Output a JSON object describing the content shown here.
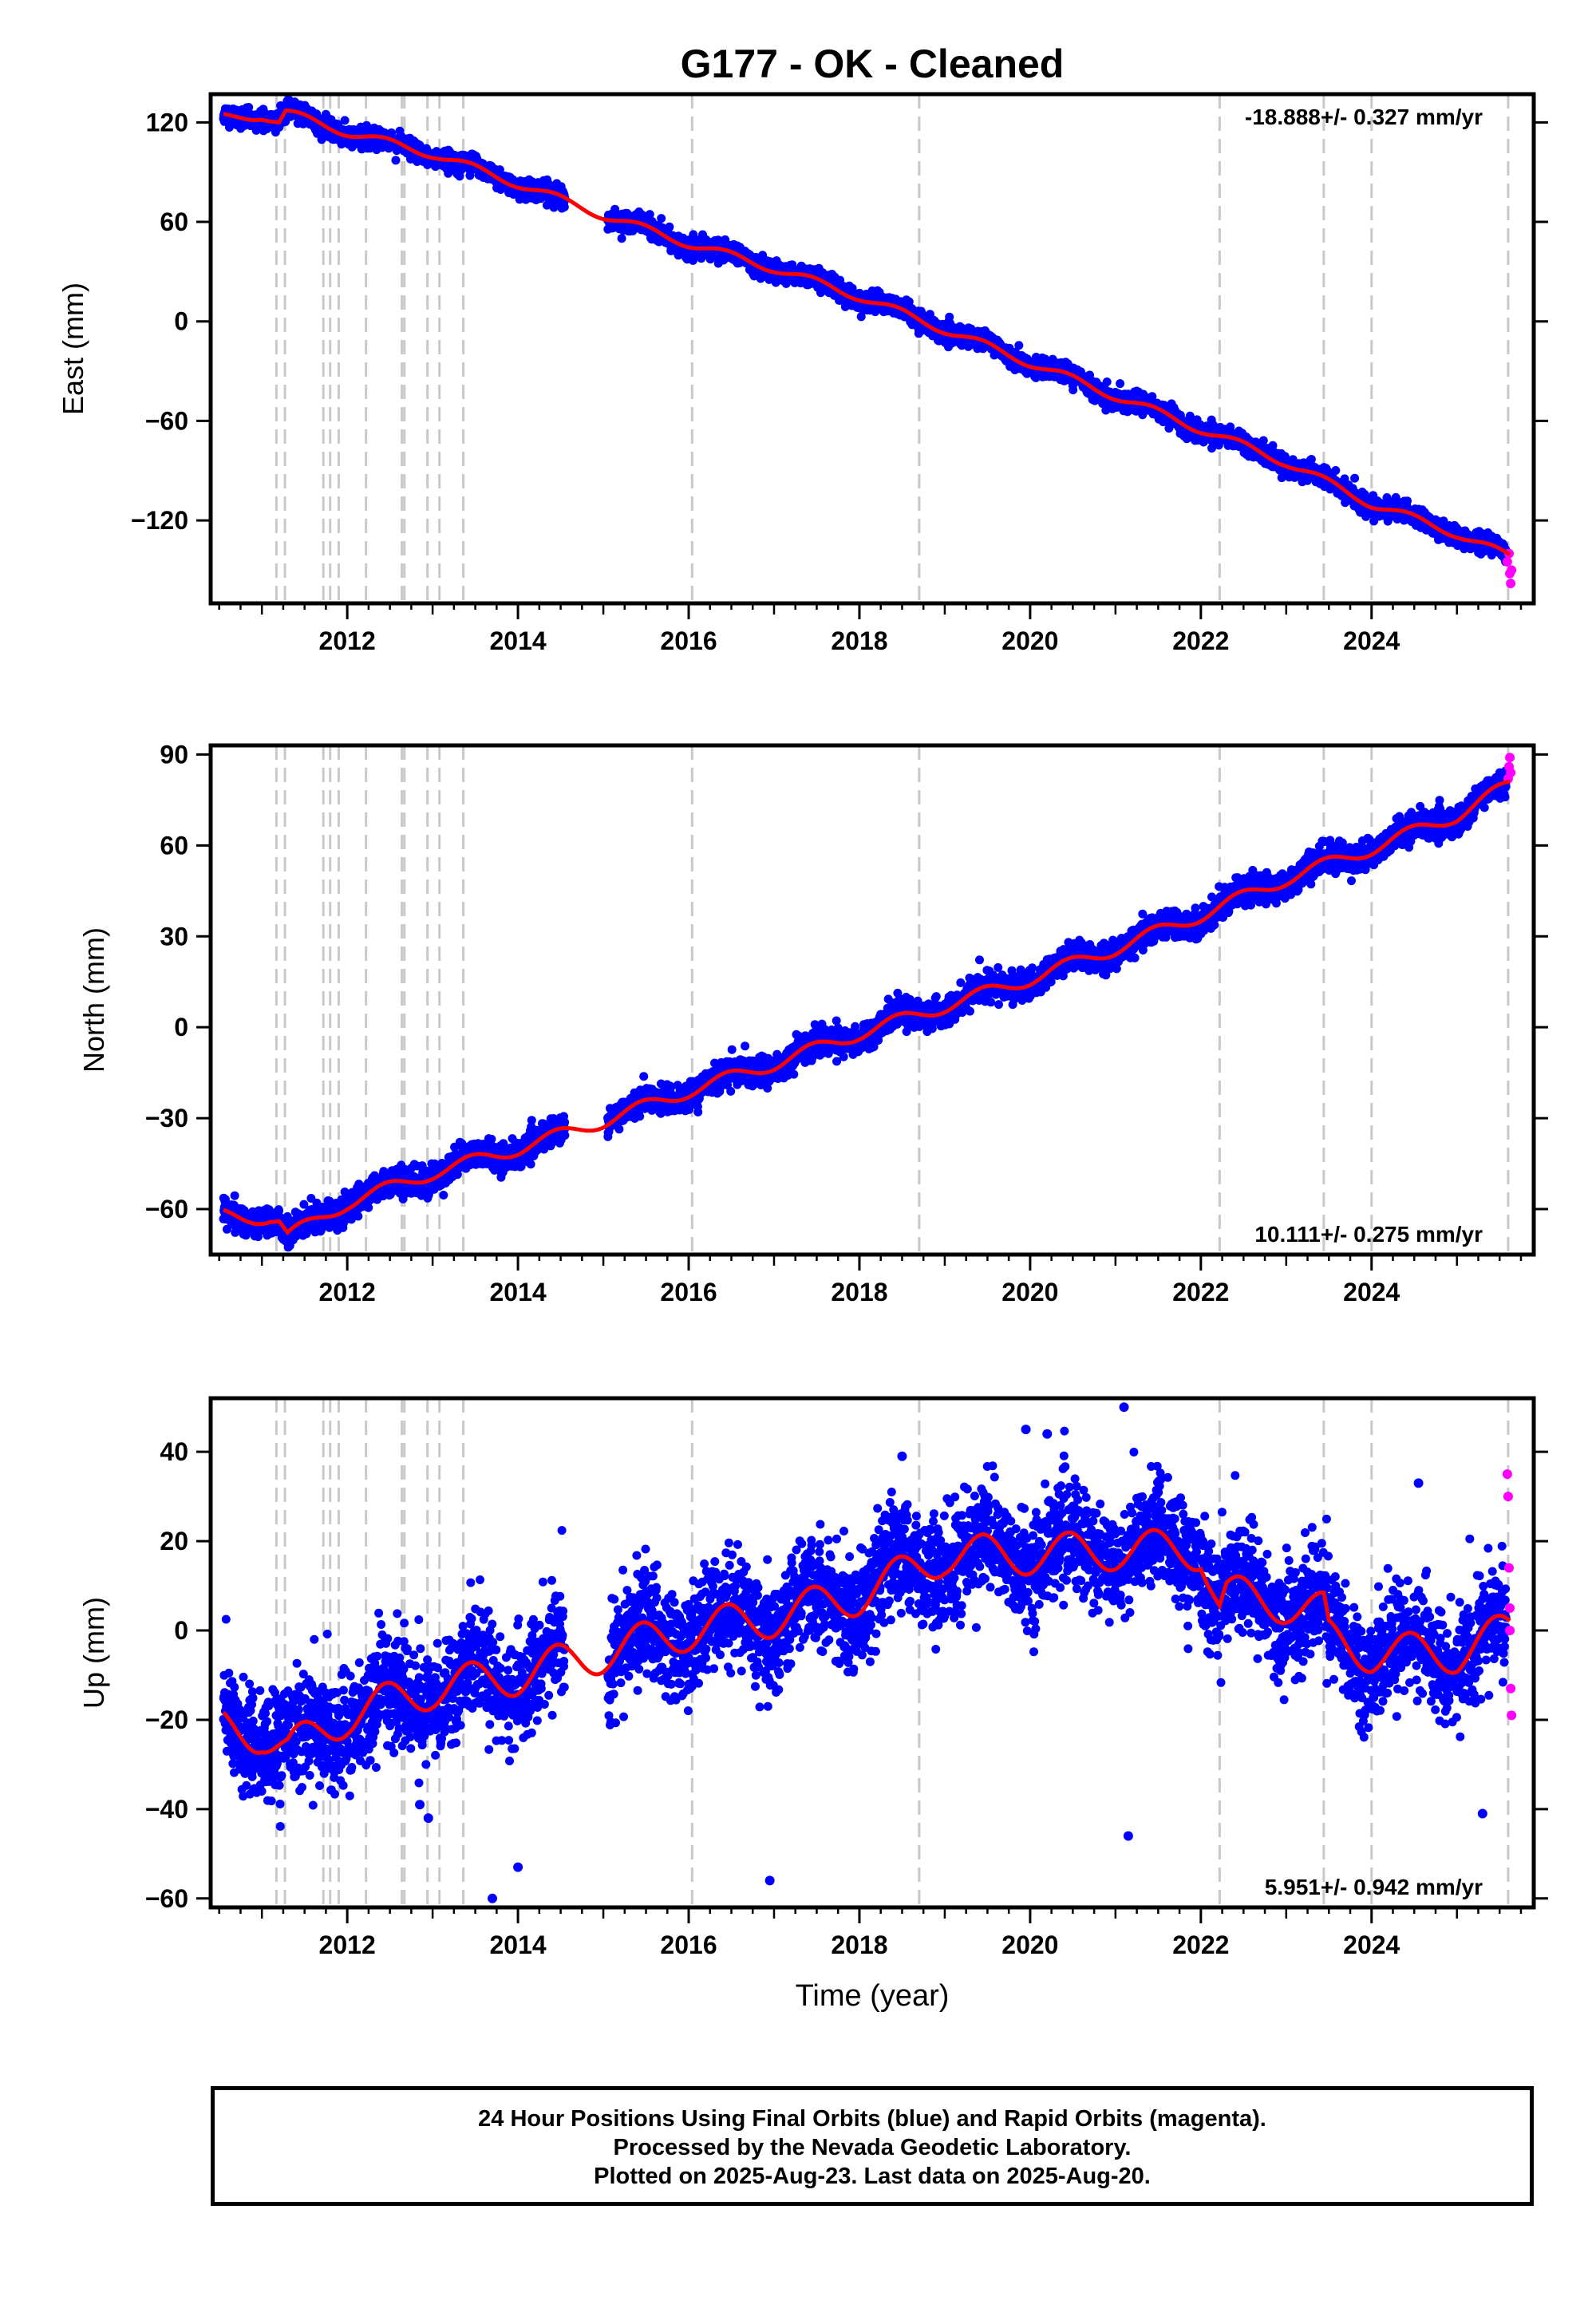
{
  "title": "G177  - OK - Cleaned",
  "colors": {
    "final": "#0000ff",
    "rapid": "#ff00ff",
    "model": "#ff0000",
    "event": "#c8c8c8"
  },
  "xaxis": {
    "label": "Time (year)",
    "range": [
      2010.4,
      2025.9
    ],
    "ticks": [
      2012,
      2014,
      2016,
      2018,
      2020,
      2022,
      2024
    ]
  },
  "events": [
    2011.17,
    2011.27,
    2011.72,
    2011.8,
    2011.9,
    2012.22,
    2012.64,
    2012.67,
    2012.94,
    2013.08,
    2013.36,
    2016.04,
    2018.7,
    2022.22,
    2023.44,
    2024.0,
    2025.6
  ],
  "chart_data": [
    {
      "type": "scatter",
      "component": "east",
      "ylabel": "East (mm)",
      "ylim": [
        -170,
        137
      ],
      "yticks": [
        120,
        60,
        0,
        -60,
        -120
      ],
      "rate": "-18.888+/- 0.327 mm/yr",
      "rate_pos": "top-right",
      "model": {
        "x": [
          2010.55,
          2011.0,
          2011.2,
          2011.28,
          2012.0,
          2013.0,
          2014.0,
          2015.0,
          2016.0,
          2017.0,
          2018.0,
          2019.0,
          2020.0,
          2021.0,
          2022.0,
          2023.0,
          2024.0,
          2025.0,
          2025.62
        ],
        "y": [
          123,
          124,
          120,
          126,
          114,
          101,
          83,
          64,
          47,
          32,
          15,
          -5,
          -25,
          -45,
          -65,
          -85,
          -110,
          -128,
          -142
        ]
      },
      "noise": 2.8,
      "seasonal": 2.5,
      "gaps": [
        [
          2014.55,
          2015.05
        ]
      ],
      "rapid": {
        "x": [
          2025.59,
          2025.61,
          2025.62,
          2025.63,
          2025.64
        ],
        "y": [
          -145,
          -140,
          -152,
          -158,
          -150
        ]
      }
    },
    {
      "type": "scatter",
      "component": "north",
      "ylabel": "North (mm)",
      "ylim": [
        -75,
        93
      ],
      "yticks": [
        90,
        60,
        30,
        0,
        -30,
        -60
      ],
      "rate": "10.111+/- 0.275 mm/yr",
      "rate_pos": "bottom-right",
      "model": {
        "x": [
          2010.55,
          2011.1,
          2011.2,
          2011.3,
          2012.0,
          2013.0,
          2014.0,
          2015.0,
          2016.0,
          2017.0,
          2018.0,
          2019.0,
          2020.0,
          2021.0,
          2022.0,
          2023.0,
          2024.0,
          2025.0,
          2025.62
        ],
        "y": [
          -62,
          -63,
          -64,
          -69,
          -58,
          -48,
          -40,
          -31,
          -21,
          -12,
          -2,
          7,
          16,
          26,
          37,
          49,
          59,
          70,
          80
        ]
      },
      "noise": 2.2,
      "seasonal": 2.2,
      "gaps": [
        [
          2014.55,
          2015.05
        ]
      ],
      "rapid": {
        "x": [
          2025.6,
          2025.61,
          2025.62,
          2025.63
        ],
        "y": [
          82,
          86,
          89,
          84
        ]
      }
    },
    {
      "type": "scatter",
      "component": "up",
      "ylabel": "Up (mm)",
      "ylim": [
        -62,
        52
      ],
      "yticks": [
        40,
        20,
        0,
        -20,
        -40,
        -60
      ],
      "rate": "5.951+/- 0.942 mm/yr",
      "rate_pos": "bottom-right",
      "model": {
        "x": [
          2010.55,
          2011.0,
          2011.3,
          2012.0,
          2013.0,
          2014.0,
          2015.0,
          2016.0,
          2017.0,
          2018.0,
          2018.7,
          2019.0,
          2020.0,
          2021.0,
          2022.0,
          2022.22,
          2022.3,
          2023.0,
          2023.44,
          2023.5,
          2024.0,
          2025.0,
          2025.62
        ],
        "y": [
          -22,
          -23,
          -27,
          -19,
          -13,
          -10,
          -5,
          0,
          3,
          8,
          14,
          17,
          17,
          18,
          18,
          5,
          8,
          6,
          4,
          -2,
          -5,
          -5,
          0
        ]
      },
      "noise": 6.0,
      "seasonal": 4.5,
      "gaps": [
        [
          2014.55,
          2015.05
        ]
      ],
      "outliers": {
        "x": [
          2013.7,
          2014.0,
          2016.95,
          2019.95,
          2020.2,
          2021.1,
          2021.15,
          2012.95,
          2012.85,
          2018.5,
          2024.55,
          2025.3
        ],
        "y": [
          -60,
          -53,
          -56,
          45,
          44,
          50,
          -46,
          -42,
          -39,
          39,
          33,
          -41
        ]
      },
      "rapid": {
        "x": [
          2025.59,
          2025.6,
          2025.61,
          2025.62,
          2025.63,
          2025.64,
          2025.62
        ],
        "y": [
          35,
          30,
          14,
          0,
          -13,
          -19,
          5
        ]
      }
    }
  ],
  "footer": {
    "line1": "24 Hour Positions Using Final Orbits (blue) and Rapid Orbits (magenta).",
    "line2": "Processed by the Nevada Geodetic Laboratory.",
    "line3": "Plotted on 2025-Aug-23. Last data on 2025-Aug-20."
  }
}
